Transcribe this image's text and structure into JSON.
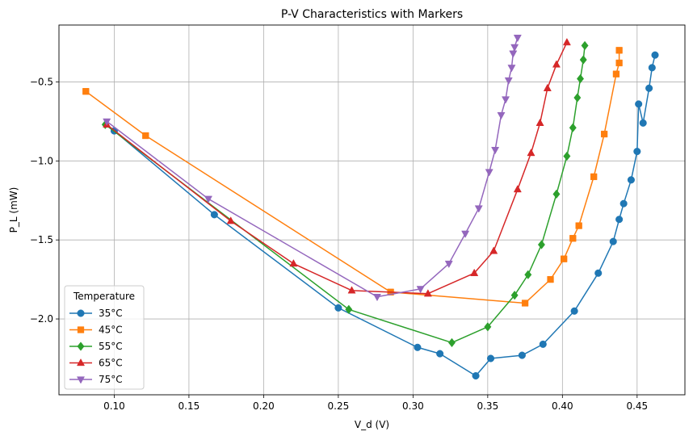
{
  "chart_data": {
    "type": "line",
    "title": "P-V Characteristics with Markers",
    "xlabel": "V_d (V)",
    "ylabel": "P_L (mW)",
    "xlim": [
      0.063,
      0.482
    ],
    "ylim": [
      -2.48,
      -0.14
    ],
    "xticks": [
      0.1,
      0.15,
      0.2,
      0.25,
      0.3,
      0.35,
      0.4,
      0.45
    ],
    "xtick_labels": [
      "0.10",
      "0.15",
      "0.20",
      "0.25",
      "0.30",
      "0.35",
      "0.40",
      "0.45"
    ],
    "yticks": [
      -2.0,
      -1.5,
      -1.0,
      -0.5
    ],
    "ytick_labels": [
      "−2.0",
      "−1.5",
      "−1.0",
      "−0.5"
    ],
    "grid": true,
    "legend": {
      "title": "Temperature",
      "placement": "lower-left"
    },
    "series": [
      {
        "name": "35°C",
        "color": "#1f77b4",
        "marker": "circle",
        "x": [
          0.1,
          0.167,
          0.25,
          0.303,
          0.318,
          0.342,
          0.352,
          0.373,
          0.387,
          0.408,
          0.424,
          0.434,
          0.438,
          0.441,
          0.446,
          0.45,
          0.451,
          0.454,
          0.458,
          0.46,
          0.462
        ],
        "y": [
          -0.81,
          -1.34,
          -1.93,
          -2.18,
          -2.22,
          -2.36,
          -2.25,
          -2.23,
          -2.16,
          -1.95,
          -1.71,
          -1.51,
          -1.37,
          -1.27,
          -1.12,
          -0.94,
          -0.64,
          -0.76,
          -0.54,
          -0.41,
          -0.33
        ]
      },
      {
        "name": "45°C",
        "color": "#ff7f0e",
        "marker": "square",
        "x": [
          0.081,
          0.121,
          0.285,
          0.375,
          0.392,
          0.401,
          0.407,
          0.411,
          0.421,
          0.428,
          0.436,
          0.438,
          0.438
        ],
        "y": [
          -0.56,
          -0.84,
          -1.83,
          -1.9,
          -1.75,
          -1.62,
          -1.49,
          -1.41,
          -1.1,
          -0.83,
          -0.45,
          -0.38,
          -0.3
        ]
      },
      {
        "name": "55°C",
        "color": "#2ca02c",
        "marker": "diamond",
        "x": [
          0.094,
          0.257,
          0.326,
          0.35,
          0.368,
          0.377,
          0.386,
          0.396,
          0.403,
          0.407,
          0.41,
          0.412,
          0.414,
          0.415
        ],
        "y": [
          -0.77,
          -1.94,
          -2.15,
          -2.05,
          -1.85,
          -1.72,
          -1.53,
          -1.21,
          -0.97,
          -0.79,
          -0.6,
          -0.48,
          -0.36,
          -0.27
        ]
      },
      {
        "name": "65°C",
        "color": "#d62728",
        "marker": "triangle-up",
        "x": [
          0.095,
          0.178,
          0.22,
          0.259,
          0.31,
          0.341,
          0.354,
          0.37,
          0.379,
          0.385,
          0.39,
          0.396,
          0.403
        ],
        "y": [
          -0.77,
          -1.38,
          -1.65,
          -1.82,
          -1.84,
          -1.71,
          -1.57,
          -1.18,
          -0.95,
          -0.76,
          -0.54,
          -0.39,
          -0.25
        ]
      },
      {
        "name": "75°C",
        "color": "#9467bd",
        "marker": "triangle-down",
        "x": [
          0.095,
          0.163,
          0.276,
          0.305,
          0.324,
          0.335,
          0.344,
          0.351,
          0.355,
          0.359,
          0.362,
          0.364,
          0.366,
          0.367,
          0.368,
          0.37
        ],
        "y": [
          -0.75,
          -1.24,
          -1.86,
          -1.81,
          -1.65,
          -1.46,
          -1.3,
          -1.07,
          -0.93,
          -0.71,
          -0.61,
          -0.49,
          -0.41,
          -0.32,
          -0.28,
          -0.22
        ]
      }
    ]
  }
}
